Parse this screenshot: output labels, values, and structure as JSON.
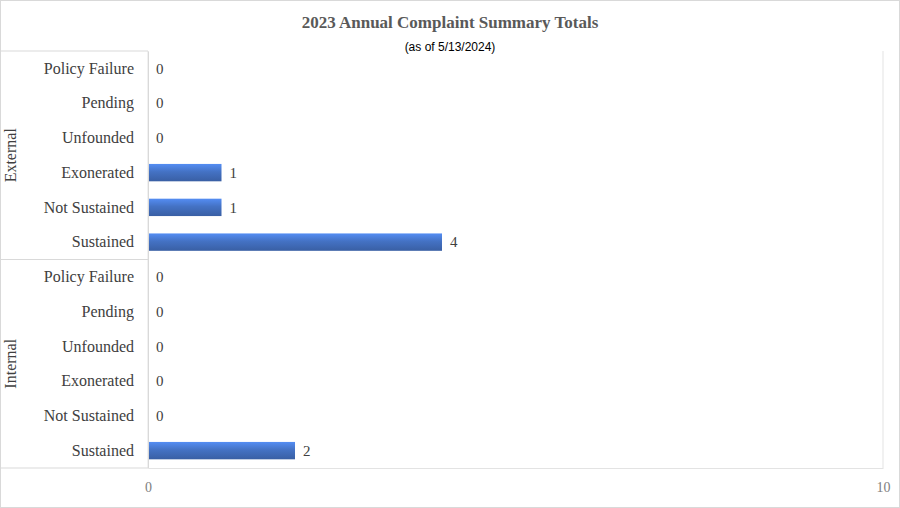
{
  "chart_data": {
    "type": "bar",
    "orientation": "horizontal",
    "title": "2023 Annual Complaint Summary Totals",
    "subtitle": "(as of 5/13/2024)",
    "groups": [
      {
        "name": "External",
        "categories": [
          "Policy Failure",
          "Pending",
          "Unfounded",
          "Exonerated",
          "Not Sustained",
          "Sustained"
        ],
        "values": [
          0,
          0,
          0,
          1,
          1,
          4
        ]
      },
      {
        "name": "Internal",
        "categories": [
          "Policy Failure",
          "Pending",
          "Unfounded",
          "Exonerated",
          "Not Sustained",
          "Sustained"
        ],
        "values": [
          0,
          0,
          0,
          0,
          0,
          2
        ]
      }
    ],
    "color": "#4472c4",
    "xlim": [
      0,
      10
    ],
    "xticks": [
      0,
      10
    ],
    "grid": true,
    "data_labels": true
  }
}
